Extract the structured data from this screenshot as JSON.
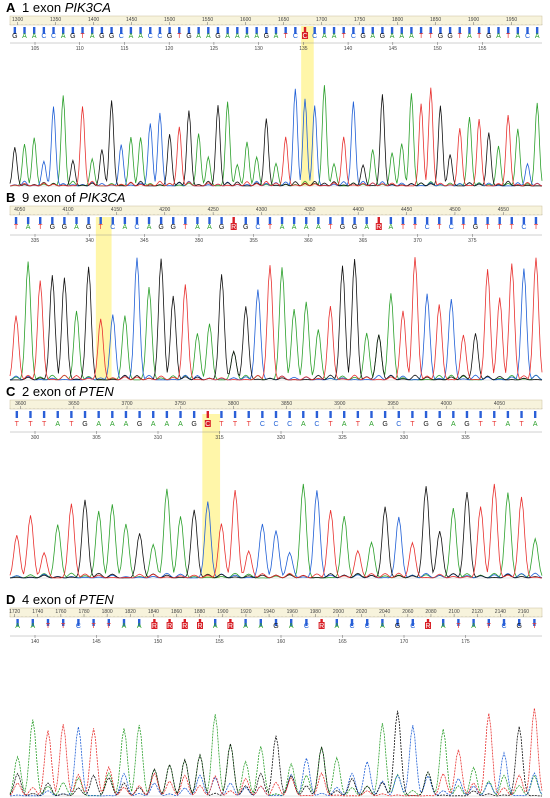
{
  "colors": {
    "A": "#2ca02c",
    "C": "#1f5fd6",
    "G": "#111111",
    "T": "#e8312f",
    "highlight": "#fff59a",
    "header_bg": "#f7f3dc",
    "mutation_box": "#d81f26"
  },
  "panels": [
    {
      "letter": "A",
      "title": "1 exon",
      "gene": "PIK3CA",
      "scan_ticks": [
        "1300",
        "1350",
        "1400",
        "1450",
        "1500",
        "1550",
        "1600",
        "1650",
        "1700",
        "1750",
        "1800",
        "1850",
        "1900",
        "1950"
      ],
      "sequence": "GAACCAGTAGGCAACCGTGAAGAAAAGATCCCAATCGAGAAATTGGTATGATACA",
      "mutation_positions": [
        30
      ],
      "position_ticks": [
        "105",
        "110",
        "115",
        "120",
        "125",
        "130",
        "135",
        "140",
        "145",
        "150",
        "155"
      ]
    },
    {
      "letter": "B",
      "title": "9 exon of",
      "gene": "PIK3CA",
      "scan_ticks": [
        "4050",
        "4100",
        "4150",
        "4200",
        "4250",
        "4300",
        "4350",
        "4400",
        "4450",
        "4500",
        "4550"
      ],
      "sequence": "TATGGAGTCACAGGTAAGRGCTAAAATGGARATTCTCTGTTTCT",
      "mutation_positions": [
        18,
        30
      ],
      "position_ticks": [
        "335",
        "340",
        "345",
        "350",
        "355",
        "360",
        "365",
        "370",
        "375"
      ]
    },
    {
      "letter": "C",
      "title": "2 exon of",
      "gene": "PTEN",
      "scan_ticks": [
        "3600",
        "3650",
        "3700",
        "3750",
        "3800",
        "3850",
        "3900",
        "3950",
        "4000",
        "4050"
      ],
      "sequence": "TTTATGAAAGAAAGCTTTCCCACTATAGCTGGAGTTATA",
      "mutation_positions": [
        14
      ],
      "position_ticks": [
        "300",
        "305",
        "310",
        "315",
        "320",
        "325",
        "330",
        "335"
      ]
    },
    {
      "letter": "D",
      "title": "4 exon of",
      "gene": "PTEN",
      "scan_ticks": [
        "1720",
        "1740",
        "1760",
        "1780",
        "1800",
        "1820",
        "1840",
        "1860",
        "1880",
        "1900",
        "1920",
        "1940",
        "1960",
        "1980",
        "2000",
        "2020",
        "2040",
        "2060",
        "2080",
        "2100",
        "2120",
        "2140",
        "2160"
      ],
      "sequence": "AATTCTTAARRRRARAAGACRACCAGCRATATCGT",
      "mutation_positions": [
        9,
        10,
        11,
        12,
        14,
        20,
        27
      ],
      "position_ticks": [
        "140",
        "145",
        "150",
        "155",
        "160",
        "165",
        "170",
        "175"
      ]
    }
  ]
}
